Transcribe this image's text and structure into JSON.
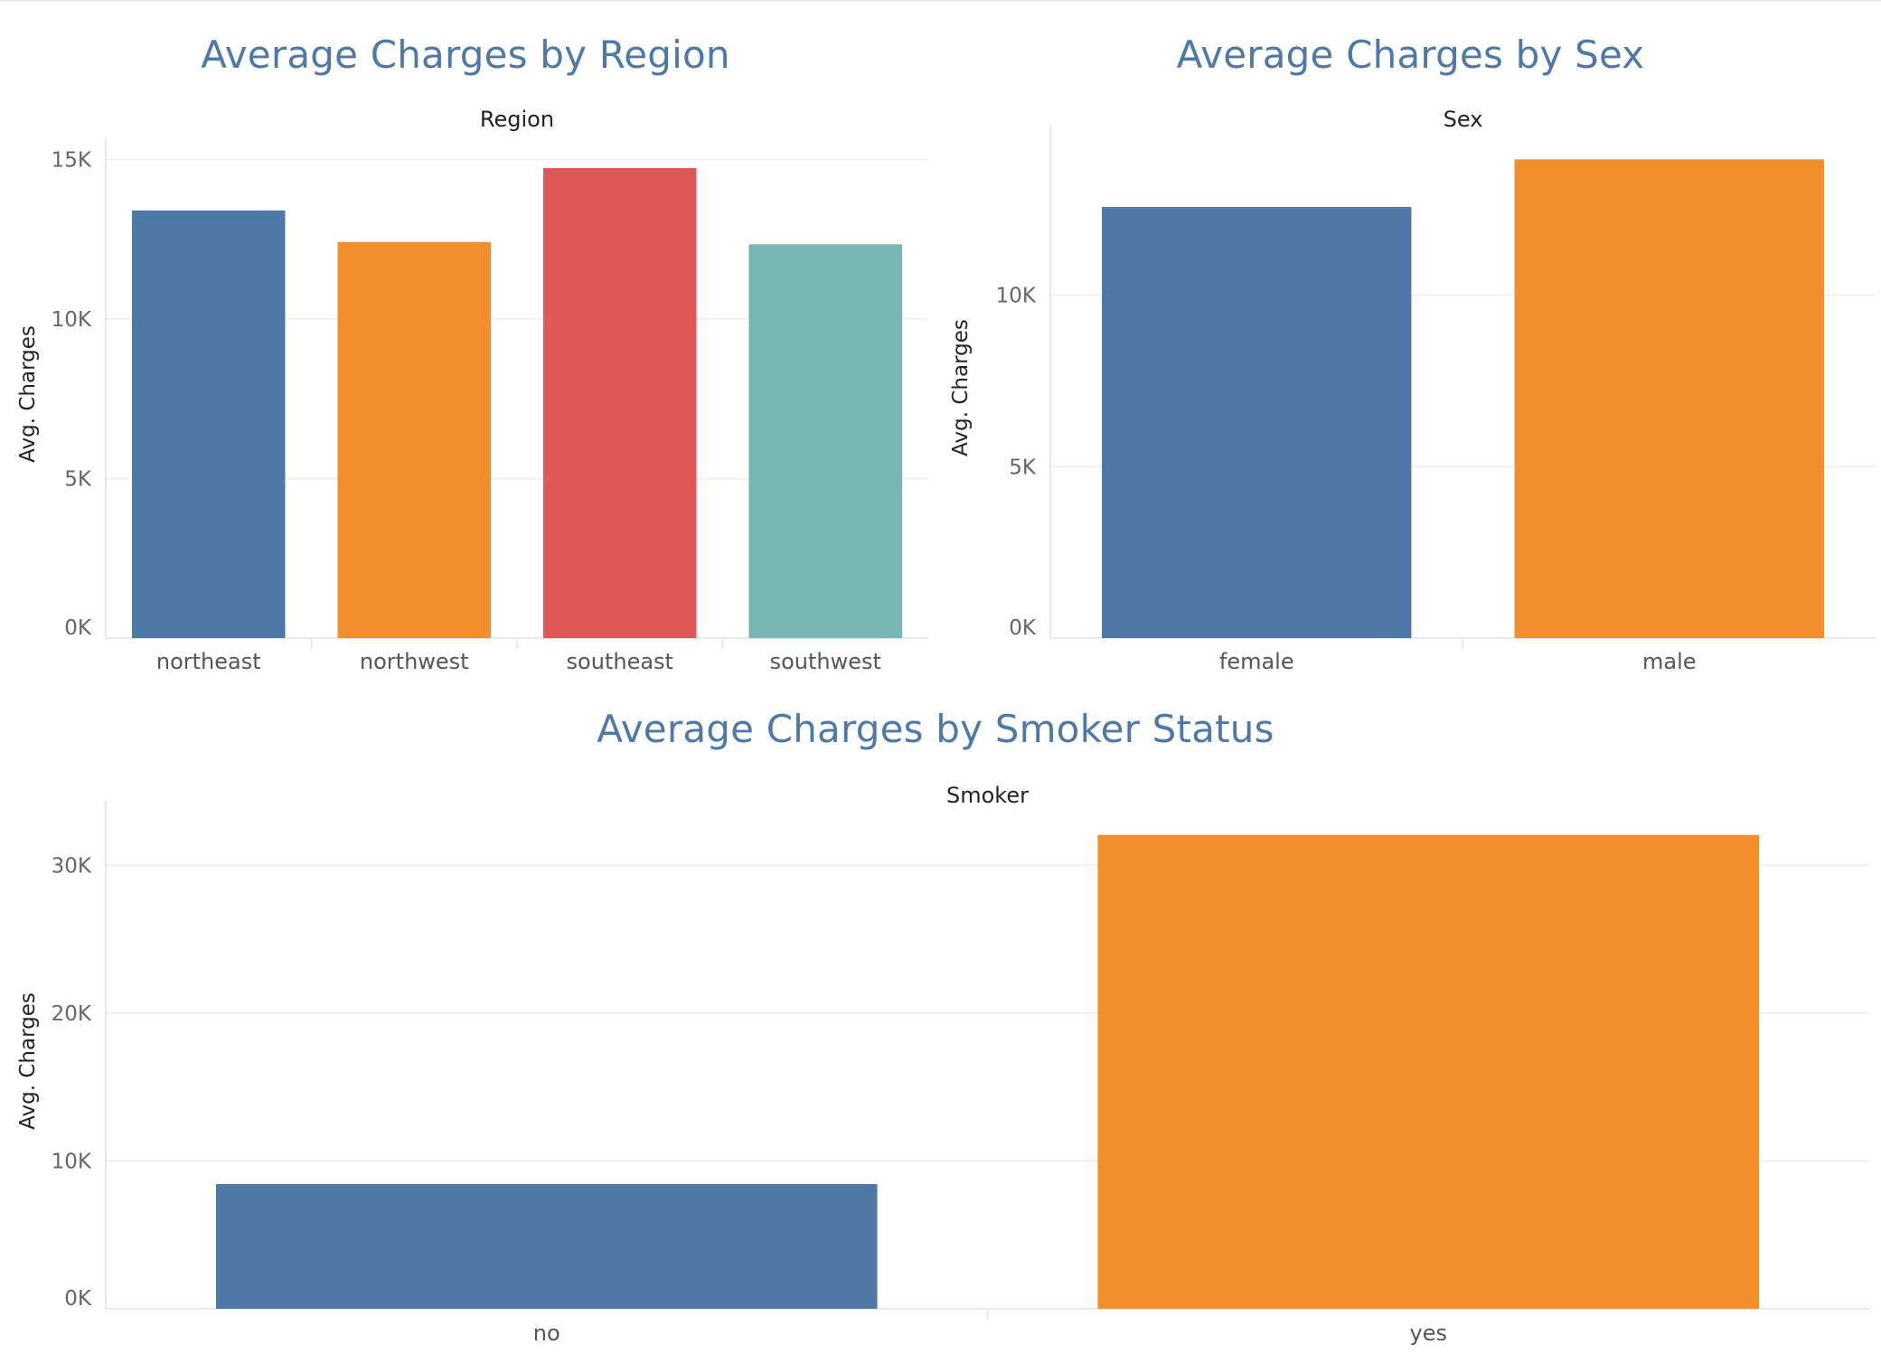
{
  "chart_data": [
    {
      "type": "bar",
      "title": "Average Charges by Region",
      "dimension_label": "Region",
      "ylabel": "Avg. Charges",
      "categories": [
        "northeast",
        "northwest",
        "southeast",
        "southwest"
      ],
      "values": [
        13406,
        12418,
        14735,
        12347
      ],
      "colors": [
        "#4e79a7",
        "#f28e2b",
        "#e15759",
        "#76b7b2"
      ],
      "yticks": [
        0,
        5000,
        10000,
        15000
      ],
      "ytick_labels": [
        "0K",
        "5K",
        "10K",
        "15K"
      ],
      "ylim": [
        0,
        15300
      ],
      "grid": true
    },
    {
      "type": "bar",
      "title": "Average Charges by Sex",
      "dimension_label": "Sex",
      "ylabel": "Avg. Charges",
      "categories": [
        "female",
        "male"
      ],
      "values": [
        12570,
        13957
      ],
      "colors": [
        "#4e79a7",
        "#f28e2b"
      ],
      "yticks": [
        0,
        5000,
        10000
      ],
      "ytick_labels": [
        "0K",
        "5K",
        "10K"
      ],
      "ylim": [
        0,
        14600
      ],
      "grid": true
    },
    {
      "type": "bar",
      "title": "Average Charges by Smoker Status",
      "dimension_label": "Smoker",
      "ylabel": "Avg. Charges",
      "categories": [
        "no",
        "yes"
      ],
      "values": [
        8434,
        32050
      ],
      "colors": [
        "#4e79a7",
        "#f28e2b"
      ],
      "yticks": [
        0,
        10000,
        20000,
        30000
      ],
      "ytick_labels": [
        "0K",
        "10K",
        "20K",
        "30K"
      ],
      "ylim": [
        0,
        33500
      ],
      "grid": true
    }
  ]
}
